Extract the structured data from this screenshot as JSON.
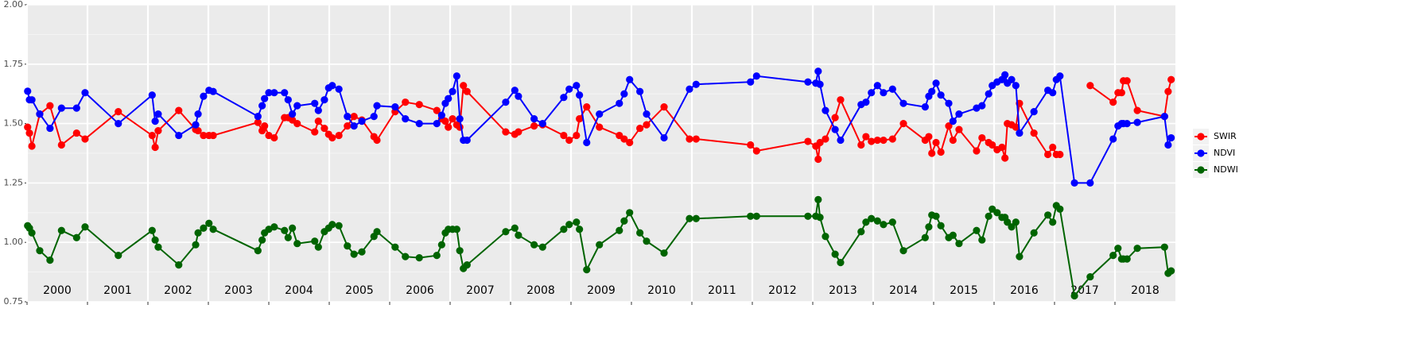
{
  "chart_data": {
    "type": "line",
    "x": [
      2000.01,
      2000.04,
      2000.08,
      2000.21,
      2000.38,
      2000.57,
      2000.82,
      2000.96,
      2001.51,
      2002.07,
      2002.12,
      2002.17,
      2002.51,
      2002.79,
      2002.83,
      2002.92,
      2003.01,
      2003.08,
      2003.82,
      2003.89,
      2003.93,
      2004.0,
      2004.09,
      2004.26,
      2004.32,
      2004.39,
      2004.47,
      2004.76,
      2004.82,
      2004.92,
      2004.99,
      2005.05,
      2005.16,
      2005.3,
      2005.41,
      2005.54,
      2005.74,
      2005.79,
      2006.09,
      2006.26,
      2006.49,
      2006.78,
      2006.86,
      2006.92,
      2006.97,
      2007.04,
      2007.11,
      2007.16,
      2007.22,
      2007.28,
      2007.92,
      2008.07,
      2008.13,
      2008.39,
      2008.53,
      2008.88,
      2008.97,
      2009.09,
      2009.14,
      2009.26,
      2009.47,
      2009.8,
      2009.88,
      2009.97,
      2010.14,
      2010.25,
      2010.54,
      2010.96,
      2011.07,
      2011.97,
      2012.07,
      2012.92,
      2013.05,
      2013.09,
      2013.12,
      2013.21,
      2013.37,
      2013.46,
      2013.8,
      2013.88,
      2013.97,
      2014.07,
      2014.17,
      2014.32,
      2014.5,
      2014.86,
      2014.92,
      2014.97,
      2015.04,
      2015.12,
      2015.25,
      2015.32,
      2015.42,
      2015.71,
      2015.8,
      2015.91,
      2015.97,
      2016.05,
      2016.13,
      2016.18,
      2016.22,
      2016.29,
      2016.36,
      2016.42,
      2016.66,
      2016.89,
      2016.97,
      2017.03,
      2017.09,
      2017.33,
      2017.59,
      2017.97,
      2018.05,
      2018.11,
      2018.14,
      2018.2,
      2018.37,
      2018.82,
      2018.88,
      2018.93
    ],
    "series": [
      {
        "name": "SWIR",
        "color": "#ff0000",
        "values": [
          1.485,
          1.46,
          1.405,
          1.54,
          1.575,
          1.41,
          1.46,
          1.435,
          1.55,
          1.45,
          1.4,
          1.47,
          1.555,
          1.475,
          1.47,
          1.45,
          1.45,
          1.45,
          1.505,
          1.47,
          1.49,
          1.45,
          1.44,
          1.525,
          1.525,
          1.515,
          1.5,
          1.465,
          1.51,
          1.48,
          1.455,
          1.44,
          1.45,
          1.49,
          1.53,
          1.515,
          1.445,
          1.43,
          1.55,
          1.59,
          1.58,
          1.555,
          1.52,
          1.51,
          1.485,
          1.52,
          1.495,
          1.485,
          1.66,
          1.635,
          1.465,
          1.455,
          1.465,
          1.49,
          1.495,
          1.45,
          1.43,
          1.45,
          1.52,
          1.57,
          1.485,
          1.45,
          1.435,
          1.42,
          1.48,
          1.495,
          1.57,
          1.435,
          1.435,
          1.41,
          1.385,
          1.425,
          1.405,
          1.35,
          1.42,
          1.435,
          1.525,
          1.6,
          1.41,
          1.445,
          1.425,
          1.43,
          1.43,
          1.435,
          1.5,
          1.43,
          1.445,
          1.375,
          1.42,
          1.38,
          1.49,
          1.43,
          1.475,
          1.385,
          1.44,
          1.42,
          1.41,
          1.39,
          1.4,
          1.355,
          1.5,
          1.495,
          1.485,
          1.585,
          1.46,
          1.37,
          1.4,
          1.37,
          1.37,
          null,
          1.66,
          1.59,
          1.63,
          1.63,
          1.68,
          1.68,
          1.555,
          1.53,
          1.635,
          1.685
        ]
      },
      {
        "name": "NDVI",
        "color": "#0000ff",
        "values": [
          1.636,
          1.6,
          1.6,
          1.54,
          1.48,
          1.565,
          1.565,
          1.63,
          1.5,
          1.62,
          1.51,
          1.54,
          1.45,
          1.495,
          1.54,
          1.615,
          1.64,
          1.635,
          1.53,
          1.575,
          1.605,
          1.63,
          1.63,
          1.63,
          1.6,
          1.54,
          1.575,
          1.585,
          1.555,
          1.6,
          1.65,
          1.66,
          1.645,
          1.53,
          1.49,
          1.51,
          1.53,
          1.575,
          1.57,
          1.52,
          1.5,
          1.5,
          1.535,
          1.585,
          1.605,
          1.635,
          1.7,
          1.52,
          1.43,
          1.43,
          1.59,
          1.64,
          1.615,
          1.52,
          1.5,
          1.61,
          1.645,
          1.66,
          1.62,
          1.42,
          1.54,
          1.585,
          1.625,
          1.685,
          1.635,
          1.54,
          1.44,
          1.645,
          1.665,
          1.675,
          1.7,
          1.675,
          1.67,
          1.72,
          1.665,
          1.555,
          1.475,
          1.43,
          1.58,
          1.59,
          1.63,
          1.66,
          1.63,
          1.645,
          1.585,
          1.57,
          1.615,
          1.635,
          1.67,
          1.62,
          1.585,
          1.51,
          1.54,
          1.565,
          1.575,
          1.625,
          1.66,
          1.675,
          1.685,
          1.705,
          1.67,
          1.685,
          1.66,
          1.46,
          1.55,
          1.64,
          1.63,
          1.685,
          1.7,
          1.25,
          1.25,
          1.435,
          1.49,
          1.5,
          1.5,
          1.5,
          1.505,
          1.53,
          1.41,
          1.44
        ]
      },
      {
        "name": "NDWI",
        "color": "#006400",
        "values": [
          1.07,
          1.06,
          1.04,
          0.965,
          0.925,
          1.05,
          1.02,
          1.065,
          0.945,
          1.05,
          1.01,
          0.98,
          0.905,
          0.99,
          1.04,
          1.06,
          1.08,
          1.055,
          0.965,
          1.01,
          1.04,
          1.055,
          1.065,
          1.05,
          1.02,
          1.06,
          0.995,
          1.005,
          0.98,
          1.045,
          1.06,
          1.075,
          1.07,
          0.985,
          0.95,
          0.96,
          1.025,
          1.045,
          0.98,
          0.94,
          0.935,
          0.945,
          0.99,
          1.04,
          1.055,
          1.055,
          1.055,
          0.965,
          0.89,
          0.905,
          1.045,
          1.06,
          1.03,
          0.99,
          0.98,
          1.055,
          1.075,
          1.085,
          1.055,
          0.885,
          0.99,
          1.05,
          1.09,
          1.125,
          1.04,
          1.005,
          0.955,
          1.1,
          1.1,
          1.11,
          1.11,
          1.11,
          1.11,
          1.18,
          1.105,
          1.025,
          0.95,
          0.915,
          1.045,
          1.085,
          1.1,
          1.09,
          1.075,
          1.085,
          0.965,
          1.02,
          1.065,
          1.115,
          1.11,
          1.07,
          1.02,
          1.03,
          0.995,
          1.05,
          1.01,
          1.11,
          1.14,
          1.125,
          1.105,
          1.105,
          1.085,
          1.065,
          1.085,
          0.94,
          1.04,
          1.115,
          1.085,
          1.155,
          1.14,
          0.775,
          0.855,
          0.945,
          0.975,
          0.93,
          0.93,
          0.93,
          0.975,
          0.98,
          0.87,
          0.88
        ]
      }
    ],
    "xlim": [
      2000,
      2019
    ],
    "xticks": [
      2000,
      2001,
      2002,
      2003,
      2004,
      2005,
      2006,
      2007,
      2008,
      2009,
      2010,
      2011,
      2012,
      2013,
      2014,
      2015,
      2016,
      2017,
      2018
    ],
    "ylim": [
      0.75,
      2.0
    ],
    "yticks": [
      {
        "value": 0.75,
        "label": "0.75"
      },
      {
        "value": 1.0,
        "label": "1.00"
      },
      {
        "value": 1.25,
        "label": "1.25"
      },
      {
        "value": 1.5,
        "label": "1.50"
      },
      {
        "value": 1.75,
        "label": "1.75"
      },
      {
        "value": 2.0,
        "label": "2.00"
      }
    ],
    "grid": true,
    "legend": "right"
  }
}
